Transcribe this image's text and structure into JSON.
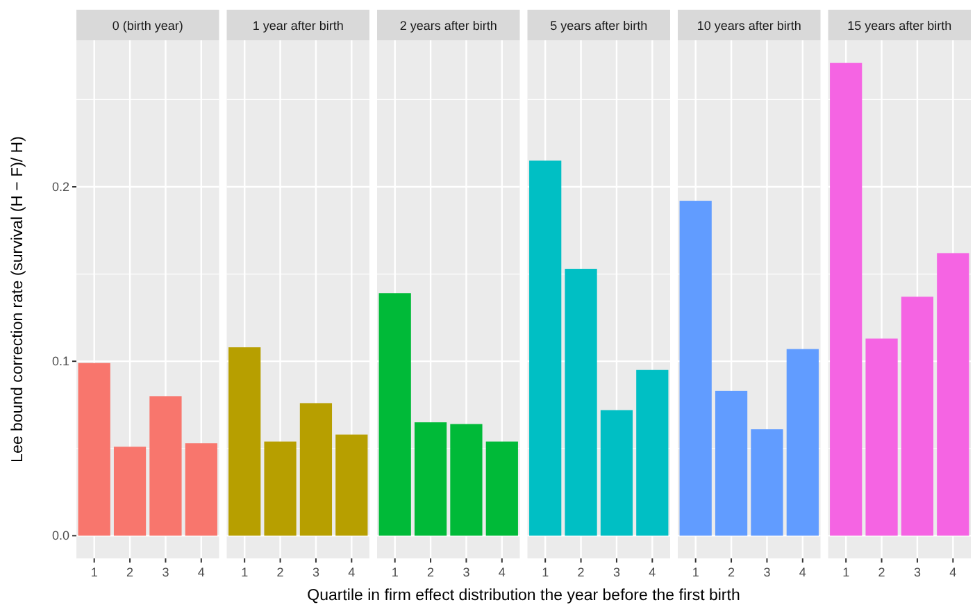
{
  "chart_data": [
    {
      "type": "bar",
      "title": "0 (birth year)",
      "ylabel": "Lee bound correction rate (survival (H − F)/ H)",
      "xlabel": "Quartile in firm effect distribution the year before the first birth",
      "categories": [
        "1",
        "2",
        "3",
        "4"
      ],
      "values": [
        0.099,
        0.051,
        0.08,
        0.053
      ],
      "color": "#f8766d",
      "ylim": [
        -0.013,
        0.284
      ],
      "yticks": [
        {
          "value": 0,
          "label": "0.0"
        },
        0.1,
        0.2
      ],
      "grid": true
    },
    {
      "type": "bar",
      "title": "1 year after birth",
      "categories": [
        "1",
        "2",
        "3",
        "4"
      ],
      "values": [
        0.108,
        0.054,
        0.076,
        0.058
      ],
      "color": "#b79f00",
      "ylim": [
        -0.013,
        0.284
      ],
      "yticks": [
        0.0,
        0.1,
        0.2
      ],
      "grid": true,
      "tick_labels": "x"
    },
    {
      "type": "bar",
      "title": "2 years after birth",
      "categories": [
        "1",
        "2",
        "3",
        "4"
      ],
      "values": [
        0.139,
        0.065,
        0.064,
        0.054
      ],
      "color": "#00ba38",
      "ylim": [
        -0.013,
        0.284
      ],
      "yticks": [
        0.0,
        0.1,
        0.2
      ],
      "grid": true,
      "tick_labels": "x"
    },
    {
      "type": "bar",
      "title": "5 years after birth",
      "categories": [
        "1",
        "2",
        "3",
        "4"
      ],
      "values": [
        0.215,
        0.153,
        0.072,
        0.095
      ],
      "color": "#00bfc4",
      "ylim": [
        -0.013,
        0.284
      ],
      "yticks": [
        0.0,
        0.1,
        0.2
      ],
      "grid": true,
      "tick_labels": "x"
    },
    {
      "type": "bar",
      "title": "10 years after birth",
      "categories": [
        "1",
        "2",
        "3",
        "4"
      ],
      "values": [
        0.192,
        0.083,
        0.061,
        0.107
      ],
      "color": "#619cff",
      "ylim": [
        -0.013,
        0.284
      ],
      "yticks": [
        0.0,
        0.1,
        0.2
      ],
      "grid": true,
      "tick_labels": "x"
    },
    {
      "type": "bar",
      "title": "15 years after birth",
      "categories": [
        "1",
        "2",
        "3",
        "4"
      ],
      "values": [
        0.271,
        0.113,
        0.137,
        0.162
      ],
      "color": "#f564e3",
      "ylim": [
        -0.013,
        0.284
      ],
      "yticks": [
        0.0,
        0.1,
        0.2
      ],
      "grid": true,
      "tick_labels": "x"
    }
  ]
}
